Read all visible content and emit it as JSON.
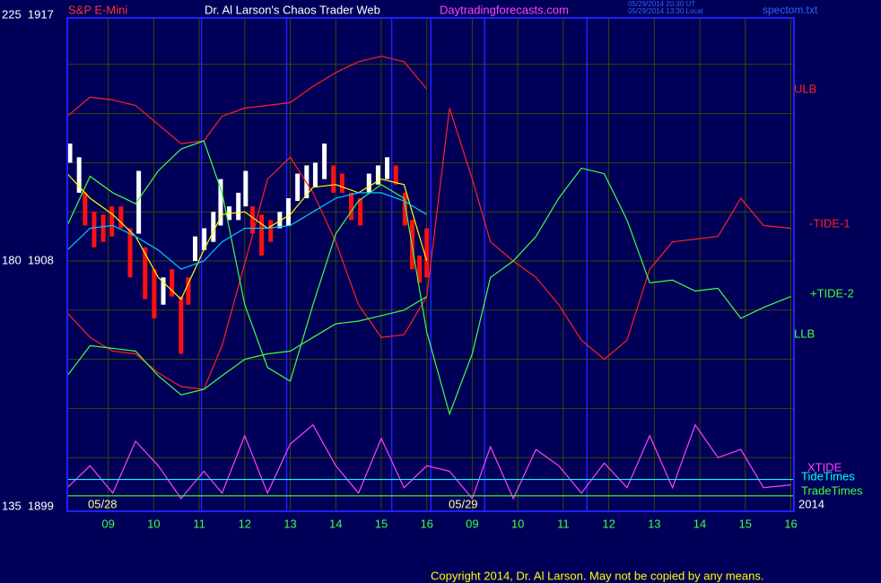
{
  "chart_data": {
    "type": "line",
    "annotations": [
      {
        "text": "S&P E-Mini",
        "color": "#ff3030"
      },
      {
        "text": "Dr. Al Larson's Chaos Trader Web",
        "color": "#ffffff"
      },
      {
        "text": "Daytradingforecasts.com",
        "color": "#ff40ff"
      },
      {
        "text": "05/29/2014 20:30 UT",
        "color": "#3060ff"
      },
      {
        "text": "05/29/2014 13:30 Local",
        "color": "#3060ff"
      },
      {
        "text": "spectom.txt",
        "color": "#3060ff"
      },
      {
        "text": "05/28",
        "color": "#ffff99"
      },
      {
        "text": "05/29",
        "color": "#ffff99"
      },
      {
        "text": "2014",
        "color": "#ffffff"
      },
      {
        "text": "Copyright 2014, Dr. Al Larson. May not be copied by any means.",
        "color": "#ffff00"
      }
    ],
    "xlim": [
      0.1,
      16.05
    ],
    "xticks": [
      {
        "value": 1,
        "label": "09"
      },
      {
        "value": 2,
        "label": "10"
      },
      {
        "value": 3,
        "label": "11"
      },
      {
        "value": 4,
        "label": "12"
      },
      {
        "value": 5,
        "label": "13"
      },
      {
        "value": 6,
        "label": "14"
      },
      {
        "value": 7,
        "label": "15"
      },
      {
        "value": 8,
        "label": "16"
      },
      {
        "value": 9,
        "label": "09"
      },
      {
        "value": 10,
        "label": "10"
      },
      {
        "value": 11,
        "label": "11"
      },
      {
        "value": 12,
        "label": "12"
      },
      {
        "value": 13,
        "label": "13"
      },
      {
        "value": 14,
        "label": "14"
      },
      {
        "value": 15,
        "label": "15"
      },
      {
        "value": 16,
        "label": "16"
      }
    ],
    "ylim": [
      1899,
      1917
    ],
    "yticks": [
      {
        "value": 1917,
        "label": "225  1917"
      },
      {
        "value": 1908,
        "label": "180  1908"
      },
      {
        "value": 1899,
        "label": "135  1899"
      }
    ],
    "ygrid": [
      1900.8,
      1902.6,
      1904.4,
      1906.2,
      1908,
      1909.8,
      1911.6,
      1913.4,
      1915.2
    ],
    "grid": true,
    "event_lines": {
      "color": "#2020ff",
      "x": [
        3.05,
        4.92,
        7.23,
        8.09,
        9.27,
        11.52
      ]
    },
    "x": [
      0.1,
      0.6,
      1.1,
      1.6,
      2.1,
      2.6,
      3.1,
      3.5,
      4.0,
      4.5,
      5.0,
      5.5,
      6.0,
      6.5,
      7.0,
      7.5,
      8.0,
      8.5,
      9.0,
      9.4,
      9.9,
      10.4,
      10.9,
      11.4,
      11.9,
      12.4,
      12.9,
      13.4,
      13.9,
      14.4,
      14.9,
      15.4,
      16.0
    ],
    "series": [
      {
        "name": "ULB",
        "type": "line",
        "color": "#ff2020",
        "values": [
          1913.3,
          1914.0,
          1913.9,
          1913.7,
          1913.0,
          1912.3,
          1912.4,
          1913.3,
          1913.6,
          1913.7,
          1913.8,
          1914.4,
          1914.9,
          1915.3,
          1915.5,
          1915.3,
          1914.3,
          null,
          null,
          null,
          null,
          null,
          null,
          null,
          null,
          null,
          null,
          null,
          null,
          null,
          null,
          null,
          null
        ]
      },
      {
        "name": "-TIDE-1",
        "type": "line",
        "color": "#ff2020",
        "values": [
          1906.1,
          1905.2,
          1904.7,
          1904.6,
          1903.9,
          1903.4,
          1903.3,
          1904.9,
          1907.9,
          1911.0,
          1911.8,
          1910.5,
          1908.7,
          1906.4,
          1905.2,
          1905.3,
          1906.7,
          1913.6,
          1911.0,
          1908.7,
          1908.0,
          1907.4,
          1906.4,
          1905.1,
          1904.4,
          1905.1,
          1907.7,
          1908.7,
          1908.8,
          1908.9,
          1910.3,
          1909.3,
          1909.2
        ]
      },
      {
        "name": "+TIDE-2",
        "type": "line",
        "color": "#40ff40",
        "values": [
          1909.3,
          1911.1,
          1910.5,
          1910.1,
          1911.3,
          1912.1,
          1912.4,
          1910.5,
          1906.4,
          1904.1,
          1903.6,
          1906.4,
          1909.0,
          1910.2,
          1910.8,
          1910.3,
          1905.4,
          1902.4,
          1904.6,
          1907.4,
          1908.0,
          1908.9,
          1910.3,
          1911.4,
          1911.2,
          1909.5,
          1907.2,
          1907.3,
          1906.9,
          1907.0,
          1905.9,
          1906.3,
          1906.7
        ]
      },
      {
        "name": "LLB",
        "type": "line",
        "color": "#40ff40",
        "values": [
          1903.8,
          1904.9,
          1904.8,
          1904.7,
          1903.8,
          1903.1,
          1903.3,
          1903.8,
          1904.4,
          1904.6,
          1904.7,
          1905.2,
          1905.7,
          1905.8,
          1906.0,
          1906.2,
          1906.7,
          null,
          null,
          null,
          null,
          null,
          null,
          null,
          null,
          null,
          null,
          null,
          null,
          null,
          null,
          null,
          null
        ]
      },
      {
        "type": "line",
        "color": "#ffff00",
        "values": [
          1911.2,
          1910.3,
          1909.7,
          1908.9,
          1907.4,
          1906.6,
          1908.4,
          1909.7,
          1909.8,
          1909.2,
          1909.7,
          1910.7,
          1910.8,
          1910.5,
          1911.0,
          1910.8,
          1908.0,
          null,
          null,
          null,
          null,
          null,
          null,
          null,
          null,
          null,
          null,
          null,
          null,
          null,
          null,
          null,
          null
        ]
      },
      {
        "type": "line",
        "color": "#00c8ff",
        "values": [
          1908.4,
          1909.2,
          1909.3,
          1908.9,
          1908.4,
          1907.7,
          1908.0,
          1908.7,
          1909.2,
          1909.2,
          1909.3,
          1909.8,
          1910.3,
          1910.5,
          1910.5,
          1910.2,
          1909.7,
          null,
          null,
          null,
          null,
          null,
          null,
          null,
          null,
          null,
          null,
          null,
          null,
          null,
          null,
          null,
          null
        ]
      },
      {
        "name": "XTIDE",
        "type": "line",
        "color": "#ff40ff",
        "values": [
          1899.7,
          1900.5,
          1899.5,
          1901.4,
          1900.5,
          1899.3,
          1900.3,
          1899.5,
          1901.6,
          1899.5,
          1901.3,
          1902.0,
          1900.5,
          1899.5,
          1901.5,
          1899.7,
          1900.5,
          1900.3,
          1899.3,
          1901.2,
          1899.3,
          1901.1,
          1900.5,
          1899.5,
          1900.6,
          1899.7,
          1901.6,
          1899.7,
          1902.0,
          1900.8,
          1901.1,
          1899.7,
          1899.8
        ]
      },
      {
        "name": "TideTimes",
        "type": "hline",
        "color": "#00ffff",
        "level": 1900.0
      },
      {
        "name": "TradeTimes",
        "type": "hline",
        "color": "#40ff40",
        "level": 1899.4
      }
    ],
    "bars": {
      "type": "range",
      "x": [
        0.16,
        0.36,
        0.49,
        0.69,
        0.89,
        1.08,
        1.28,
        1.48,
        1.67,
        1.81,
        2.01,
        2.21,
        2.4,
        2.6,
        2.76,
        2.91,
        3.11,
        3.31,
        3.47,
        3.66,
        3.86,
        4.02,
        4.17,
        4.37,
        4.57,
        4.77,
        4.96,
        5.16,
        5.36,
        5.55,
        5.75,
        5.95,
        6.14,
        6.34,
        6.54,
        6.73,
        6.93,
        7.13,
        7.32,
        7.52,
        7.68,
        7.84,
        8.0
      ],
      "high": [
        1912.3,
        1911.8,
        1910.5,
        1909.8,
        1909.7,
        1910.0,
        1910.0,
        1909.2,
        1911.3,
        1908.5,
        1907.7,
        1907.4,
        1907.7,
        1906.7,
        1907.4,
        1908.9,
        1909.2,
        1909.8,
        1911.0,
        1910.0,
        1910.5,
        1911.3,
        1910.0,
        1909.7,
        1909.5,
        1909.8,
        1910.3,
        1911.2,
        1911.5,
        1911.6,
        1912.3,
        1911.5,
        1911.2,
        1910.5,
        1910.3,
        1911.2,
        1911.5,
        1911.8,
        1911.5,
        1910.5,
        1909.5,
        1908.2,
        1909.2
      ],
      "low": [
        1911.6,
        1910.5,
        1909.3,
        1908.5,
        1908.7,
        1908.9,
        1909.2,
        1907.4,
        1909.0,
        1906.6,
        1905.9,
        1906.4,
        1906.7,
        1904.6,
        1906.4,
        1908.0,
        1908.4,
        1908.7,
        1909.3,
        1909.5,
        1909.5,
        1910.0,
        1909.0,
        1908.2,
        1908.7,
        1909.2,
        1909.3,
        1910.2,
        1910.3,
        1910.7,
        1911.0,
        1910.5,
        1910.5,
        1909.5,
        1909.3,
        1910.5,
        1910.8,
        1911.0,
        1910.8,
        1909.3,
        1907.7,
        1907.2,
        1907.4
      ],
      "colors": [
        "#ffffff",
        "#ffffff",
        "#ff1010",
        "#ff1010",
        "#ff1010",
        "#ff1010",
        "#ff1010",
        "#ff1010",
        "#ffffff",
        "#ff1010",
        "#ff1010",
        "#ffffff",
        "#ff1010",
        "#ff1010",
        "#ff1010",
        "#ffffff",
        "#ffffff",
        "#ffffff",
        "#ffffff",
        "#ffffff",
        "#ffffff",
        "#ffffff",
        "#ff1010",
        "#ff1010",
        "#ff1010",
        "#ffffff",
        "#ffffff",
        "#ffffff",
        "#ffffff",
        "#ffffff",
        "#ffffff",
        "#ff1010",
        "#ff1010",
        "#ff1010",
        "#ff1010",
        "#ffffff",
        "#ffffff",
        "#ffffff",
        "#ff1010",
        "#ff1010",
        "#ff1010",
        "#ff1010",
        "#ff1010"
      ]
    }
  }
}
